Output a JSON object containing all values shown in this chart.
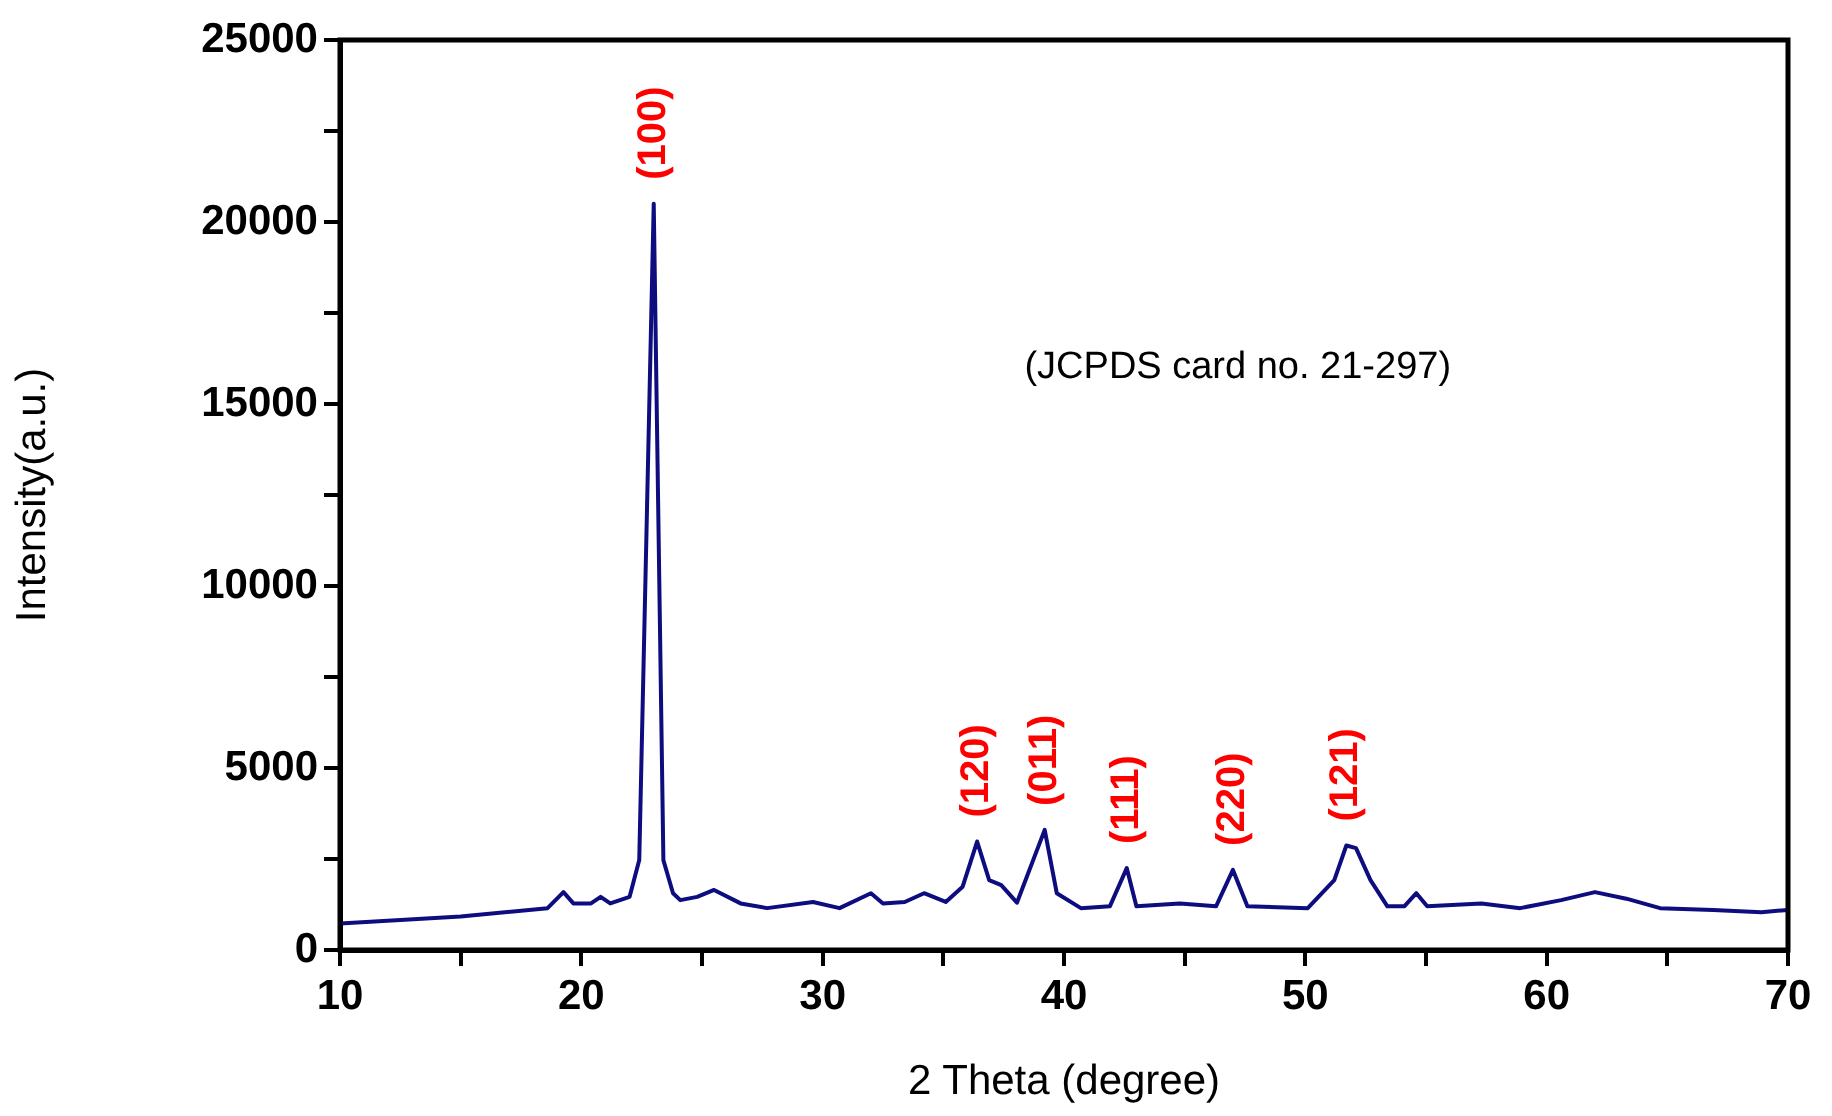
{
  "chart_data": {
    "type": "line",
    "xlabel": "2 Theta (degree)",
    "ylabel": "Intensity(a.u.)",
    "xlim": [
      10,
      70
    ],
    "ylim": [
      0,
      25000
    ],
    "xticks": [
      10,
      {
        "value": 15,
        "label": null
      },
      20,
      {
        "value": 25,
        "label": null
      },
      30,
      {
        "value": 35,
        "label": null
      },
      40,
      {
        "value": 45,
        "label": null
      },
      50,
      {
        "value": 55,
        "label": null
      },
      60,
      {
        "value": 65,
        "label": null
      },
      70
    ],
    "yticks": [
      0,
      {
        "value": 2500,
        "label": null
      },
      5000,
      {
        "value": 7500,
        "label": null
      },
      10000,
      {
        "value": 12500,
        "label": null
      },
      15000,
      {
        "value": 17500,
        "label": null
      },
      20000,
      {
        "value": 22500,
        "label": null
      },
      25000
    ],
    "grid": false,
    "legend": false,
    "marker": "none",
    "line_style": "solid",
    "series": [
      {
        "color": "#0d0d80",
        "x": [
          10,
          15,
          18.6,
          19.26,
          19.67,
          20.4,
          20.8,
          21.2,
          22.0,
          22.4,
          23.0,
          23.4,
          23.8,
          24.1,
          24.8,
          25.5,
          26.6,
          27.7,
          29.6,
          30.7,
          32.0,
          32.5,
          33.4,
          34.2,
          35.1,
          35.8,
          36.4,
          36.9,
          37.4,
          38.05,
          39.2,
          39.7,
          40.7,
          41.9,
          42.6,
          43.0,
          44.8,
          46.3,
          47.0,
          47.6,
          50.1,
          51.2,
          51.7,
          52.1,
          52.7,
          53.4,
          54.1,
          54.6,
          55.05,
          57.3,
          58.9,
          60.6,
          62.0,
          63.3,
          64.7,
          66.9,
          68.9,
          70
        ],
        "values": [
          730,
          920,
          1150,
          1590,
          1280,
          1280,
          1460,
          1280,
          1460,
          2470,
          20500,
          2470,
          1560,
          1370,
          1460,
          1650,
          1280,
          1150,
          1320,
          1150,
          1560,
          1280,
          1320,
          1560,
          1320,
          1740,
          2980,
          1920,
          1780,
          1300,
          3300,
          1560,
          1150,
          1200,
          2250,
          1200,
          1280,
          1200,
          2200,
          1200,
          1150,
          1920,
          2870,
          2800,
          1920,
          1200,
          1200,
          1560,
          1200,
          1280,
          1150,
          1370,
          1590,
          1410,
          1150,
          1100,
          1040,
          1100
        ]
      }
    ],
    "annotations": [
      {
        "text": "(100)",
        "x": 23.0,
        "y": 20500
      },
      {
        "text": "(120)",
        "x": 36.4,
        "y": 2980
      },
      {
        "text": "(011)",
        "x": 39.2,
        "y": 3300
      },
      {
        "text": "(111)",
        "x": 42.6,
        "y": 2250
      },
      {
        "text": "(220)",
        "x": 47.0,
        "y": 2200
      },
      {
        "text": "(121)",
        "x": 51.7,
        "y": 2870
      },
      "(JCPDS card no. 21-297)"
    ]
  }
}
